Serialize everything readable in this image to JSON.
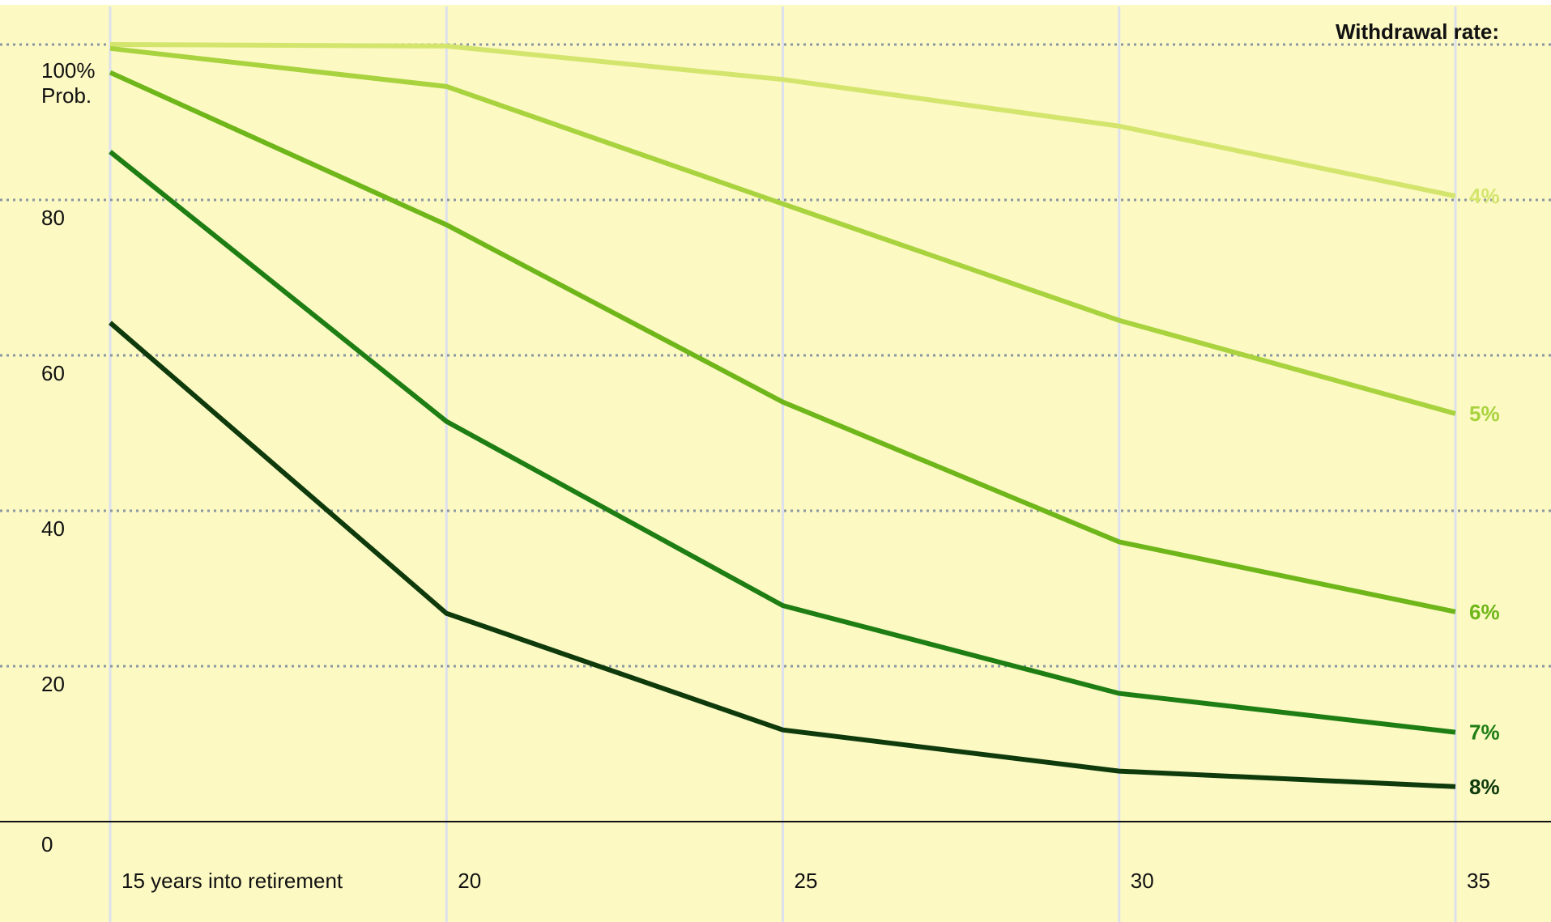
{
  "chart_data": {
    "type": "line",
    "x": [
      15,
      20,
      25,
      30,
      35
    ],
    "x_tick_labels": [
      "15 years into retirement",
      "20",
      "25",
      "30",
      "35"
    ],
    "y_tick_labels": [
      "0",
      "20",
      "40",
      "60",
      "80",
      "100%"
    ],
    "y_top_label_line2": "Prob.",
    "ylim": [
      0,
      100
    ],
    "y_ticks": [
      0,
      20,
      40,
      60,
      80,
      100
    ],
    "grid": true,
    "legend_title": "Withdrawal rate:",
    "legend_placement": "top-right",
    "series": [
      {
        "name": "4%",
        "values": [
          100,
          99.8,
          95.5,
          89.5,
          80.5
        ],
        "color": "#d4e56e"
      },
      {
        "name": "5%",
        "values": [
          99.5,
          94.6,
          79.5,
          64.5,
          52.5
        ],
        "color": "#a9d33e"
      },
      {
        "name": "6%",
        "values": [
          96.4,
          76.8,
          54.0,
          36.0,
          27.0
        ],
        "color": "#6fb61a"
      },
      {
        "name": "7%",
        "values": [
          86.2,
          51.5,
          27.8,
          16.5,
          11.5
        ],
        "color": "#1e7e14"
      },
      {
        "name": "8%",
        "values": [
          64.2,
          26.8,
          11.8,
          6.5,
          4.5
        ],
        "color": "#0e3a0c"
      }
    ],
    "colors": {
      "background": "#fcf9c3",
      "gridline": "#8a97a0",
      "vertical_gridline": "#dde1ee",
      "baseline": "#111111"
    }
  }
}
